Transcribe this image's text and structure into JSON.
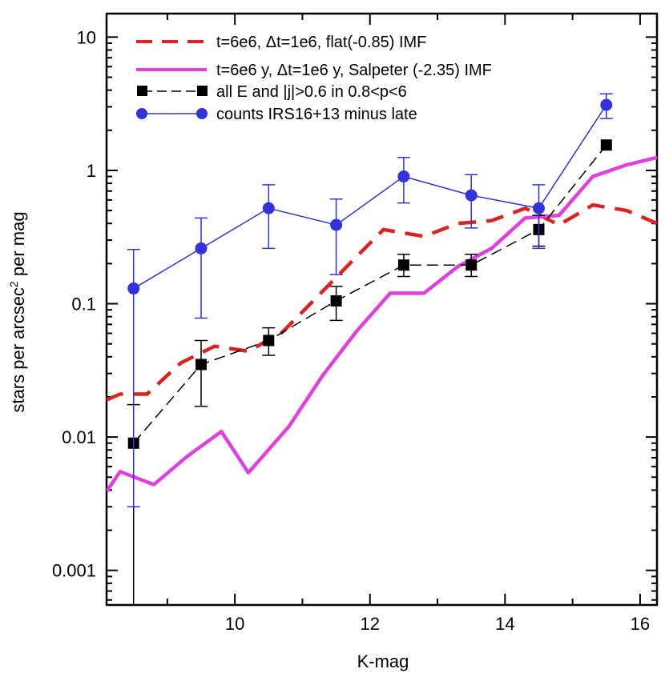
{
  "chart_data": {
    "type": "line",
    "title": "",
    "xlabel": "K-mag",
    "ylabel": "stars per arcsec² per mag",
    "ylabel_base": "stars per arcsec",
    "ylabel_sup": "2",
    "ylabel_tail": " per mag",
    "xscale": "linear",
    "yscale": "log",
    "xlim": [
      8.1,
      16.25
    ],
    "ylim": [
      0.00055,
      15
    ],
    "xticks": [
      10,
      12,
      14,
      16
    ],
    "xtick_labels": [
      "10",
      "12",
      "14",
      "16"
    ],
    "yticks": [
      0.001,
      0.01,
      0.1,
      1,
      10
    ],
    "ytick_labels": [
      "0.001",
      "0.01",
      "0.1",
      "1",
      "10"
    ],
    "legend_position": "top-left",
    "series": [
      {
        "name": "t=6e6, Δt=1e6, flat(-0.85) IMF",
        "style": "dashed",
        "color": "#dd2222",
        "x": [
          8.1,
          8.3,
          8.7,
          9.2,
          9.7,
          10.2,
          10.7,
          11.2,
          11.7,
          12.2,
          12.8,
          13.3,
          13.8,
          14.3,
          14.8,
          15.3,
          15.8,
          16.25
        ],
        "y": [
          0.019,
          0.021,
          0.021,
          0.036,
          0.048,
          0.044,
          0.061,
          0.11,
          0.2,
          0.36,
          0.32,
          0.4,
          0.42,
          0.52,
          0.39,
          0.55,
          0.5,
          0.4
        ]
      },
      {
        "name": "t=6e6 y, Δt=1e6 y, Salpeter (-2.35) IMF",
        "style": "solid",
        "color": "#e040e0",
        "x": [
          8.1,
          8.3,
          8.8,
          9.3,
          9.8,
          10.2,
          10.8,
          11.3,
          11.8,
          12.3,
          12.8,
          13.3,
          13.8,
          14.3,
          14.8,
          15.3,
          15.8,
          16.25
        ],
        "y": [
          0.0039,
          0.0055,
          0.0044,
          0.0072,
          0.011,
          0.0054,
          0.012,
          0.029,
          0.062,
          0.12,
          0.12,
          0.19,
          0.26,
          0.44,
          0.46,
          0.9,
          1.1,
          1.25
        ]
      },
      {
        "name": "all E and |j|>0.6 in 0.8<p<6",
        "style": "long-dash-square",
        "color": "#000000",
        "x": [
          8.5,
          9.5,
          10.5,
          11.5,
          12.5,
          13.5,
          14.5,
          15.5
        ],
        "y": [
          0.009,
          0.035,
          0.053,
          0.105,
          0.195,
          0.195,
          0.36,
          1.55
        ],
        "err_low": [
          0.00055,
          0.017,
          0.041,
          0.075,
          0.16,
          0.16,
          0.27,
          1.55
        ],
        "err_high": [
          0.0175,
          0.053,
          0.066,
          0.135,
          0.235,
          0.235,
          0.46,
          1.55
        ]
      },
      {
        "name": "counts IRS16+13 minus late",
        "style": "solid-circle",
        "color": "#3333dd",
        "x": [
          8.5,
          9.5,
          10.5,
          11.5,
          12.5,
          13.5,
          14.5,
          15.5
        ],
        "y": [
          0.13,
          0.26,
          0.52,
          0.39,
          0.9,
          0.65,
          0.52,
          3.1
        ],
        "err_low": [
          0.003,
          0.078,
          0.26,
          0.165,
          0.57,
          0.37,
          0.26,
          2.45
        ],
        "err_high": [
          0.255,
          0.44,
          0.78,
          0.61,
          1.25,
          0.93,
          0.78,
          3.75
        ]
      }
    ]
  }
}
